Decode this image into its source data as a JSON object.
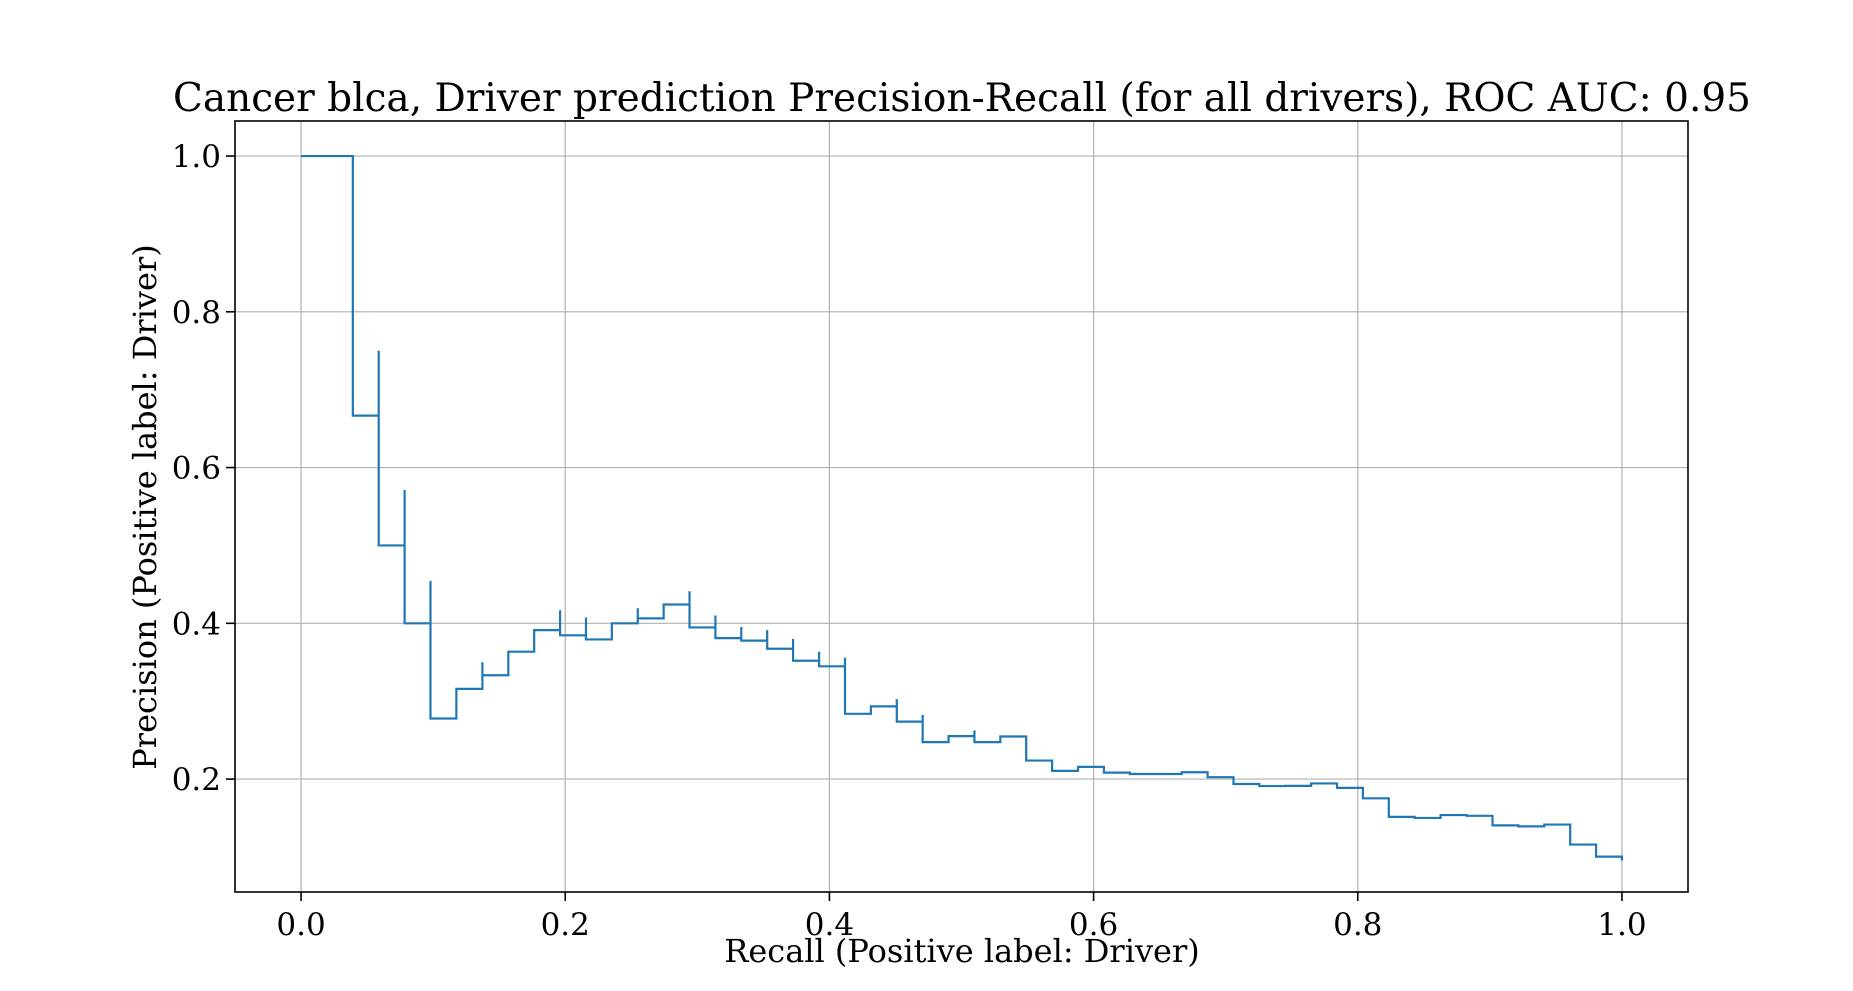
{
  "chart_data": {
    "type": "line",
    "drawstyle": "steps-post",
    "title": "Cancer blca, Driver prediction Precision-Recall (for all drivers), ROC AUC: 0.95",
    "xlabel": "Recall (Positive label: Driver)",
    "ylabel": "Precision (Positive label: Driver)",
    "xlim": [
      -0.05,
      1.05
    ],
    "ylim": [
      0.055,
      1.045
    ],
    "xticks": [
      0.0,
      0.2,
      0.4,
      0.6,
      0.8,
      1.0
    ],
    "xtick_labels": [
      "0.0",
      "0.2",
      "0.4",
      "0.6",
      "0.8",
      "1.0"
    ],
    "yticks": [
      0.2,
      0.4,
      0.6,
      0.8,
      1.0
    ],
    "ytick_labels": [
      "0.2",
      "0.4",
      "0.6",
      "0.8",
      "1.0"
    ],
    "grid": true,
    "color": "#1f77b4",
    "series": [
      {
        "x": [
          0.0,
          0.0392,
          0.0392,
          0.0588,
          0.0588,
          0.0784,
          0.0784,
          0.098,
          0.098,
          0.1176,
          0.1373,
          0.1373,
          0.1569,
          0.1765,
          0.1961,
          0.1961,
          0.2157,
          0.2157,
          0.2353,
          0.2549,
          0.2549,
          0.2745,
          0.2941,
          0.2941,
          0.3137,
          0.3137,
          0.3333,
          0.3333,
          0.3529,
          0.3529,
          0.3725,
          0.3725,
          0.3922,
          0.3922,
          0.4118,
          0.4118,
          0.4314,
          0.451,
          0.451,
          0.4706,
          0.4706,
          0.4902,
          0.5098,
          0.5098,
          0.5294,
          0.549,
          0.5686,
          0.5882,
          0.6078,
          0.6275,
          0.6471,
          0.6667,
          0.6863,
          0.7059,
          0.7255,
          0.7451,
          0.7647,
          0.7843,
          0.8039,
          0.8235,
          0.8431,
          0.8627,
          0.8824,
          0.902,
          0.9216,
          0.9412,
          0.9608,
          0.9804,
          1.0
        ],
        "y": [
          1.0,
          1.0,
          0.6667,
          0.75,
          0.5,
          0.5714,
          0.4,
          0.4545,
          0.2778,
          0.3158,
          0.35,
          0.3333,
          0.3636,
          0.3913,
          0.4167,
          0.3846,
          0.4074,
          0.3793,
          0.4,
          0.4194,
          0.4063,
          0.4242,
          0.4412,
          0.3947,
          0.41,
          0.381,
          0.3953,
          0.3778,
          0.3913,
          0.3673,
          0.38,
          0.3519,
          0.3636,
          0.3448,
          0.3559,
          0.2838,
          0.2933,
          0.3026,
          0.2738,
          0.2824,
          0.2474,
          0.2551,
          0.2626,
          0.2474,
          0.2547,
          0.2238,
          0.2105,
          0.2157,
          0.2083,
          0.2065,
          0.2065,
          0.2088,
          0.2024,
          0.1937,
          0.191,
          0.1913,
          0.1944,
          0.1887,
          0.1753,
          0.1515,
          0.1501,
          0.1538,
          0.1528,
          0.1406,
          0.1393,
          0.1416,
          0.1159,
          0.1004,
          0.0956
        ]
      }
    ]
  }
}
